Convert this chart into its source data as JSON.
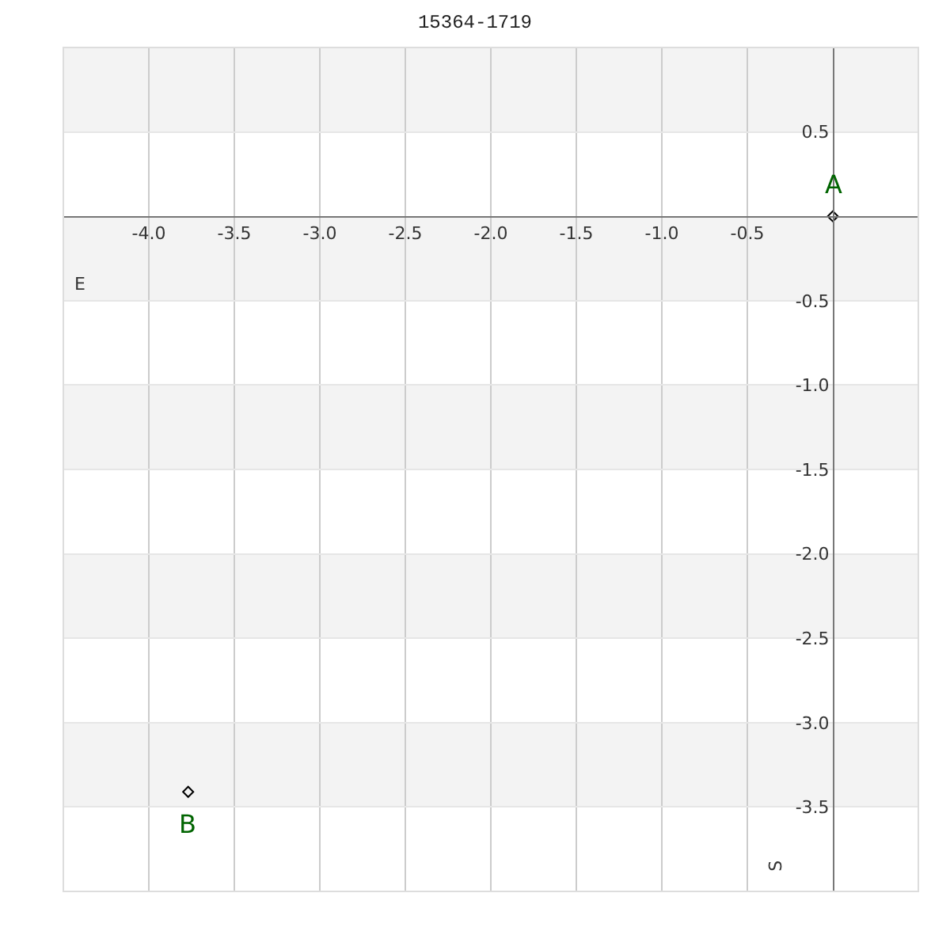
{
  "chart_data": {
    "type": "scatter",
    "title": "15364-1719",
    "xlabel": "E",
    "ylabel": "S",
    "x": [
      0,
      -3.77
    ],
    "series": [
      {
        "color": "#000000",
        "values": [
          0,
          -3.41
        ]
      }
    ],
    "marker": "diamond",
    "annotations": [
      {
        "text": "A",
        "x": 0,
        "y": 0
      },
      {
        "text": "B",
        "x": -3.77,
        "y": -3.41
      }
    ],
    "xlim": [
      -4.5,
      0.5
    ],
    "ylim": [
      -4.0,
      1.0
    ],
    "xticks": [
      {
        "value": -4,
        "label": "-4.0"
      },
      -3.5,
      {
        "value": -3,
        "label": "-3.0"
      },
      -2.5,
      {
        "value": -2,
        "label": "-2.0"
      },
      -1.5,
      {
        "value": -1,
        "label": "-1.0"
      },
      -0.5
    ],
    "yticks": [
      0.5,
      -0.5,
      {
        "value": -1,
        "label": "-1.0"
      },
      -1.5,
      {
        "value": -2,
        "label": "-2.0"
      },
      -2.5,
      {
        "value": -3,
        "label": "-3.0"
      },
      -3.5
    ],
    "bands": [
      {
        "axis": "y",
        "from": 0.5,
        "to": 1.0,
        "color": "#f3f3f3"
      },
      {
        "axis": "y",
        "from": -0.5,
        "to": 0,
        "color": "#f3f3f3"
      },
      {
        "axis": "y",
        "from": -1.5,
        "to": -1.0,
        "color": "#f3f3f3"
      },
      {
        "axis": "y",
        "from": -2.5,
        "to": -2.0,
        "color": "#f3f3f3"
      },
      {
        "axis": "y",
        "from": -3.5,
        "to": -3.0,
        "color": "#f3f3f3"
      }
    ],
    "grid": true
  }
}
